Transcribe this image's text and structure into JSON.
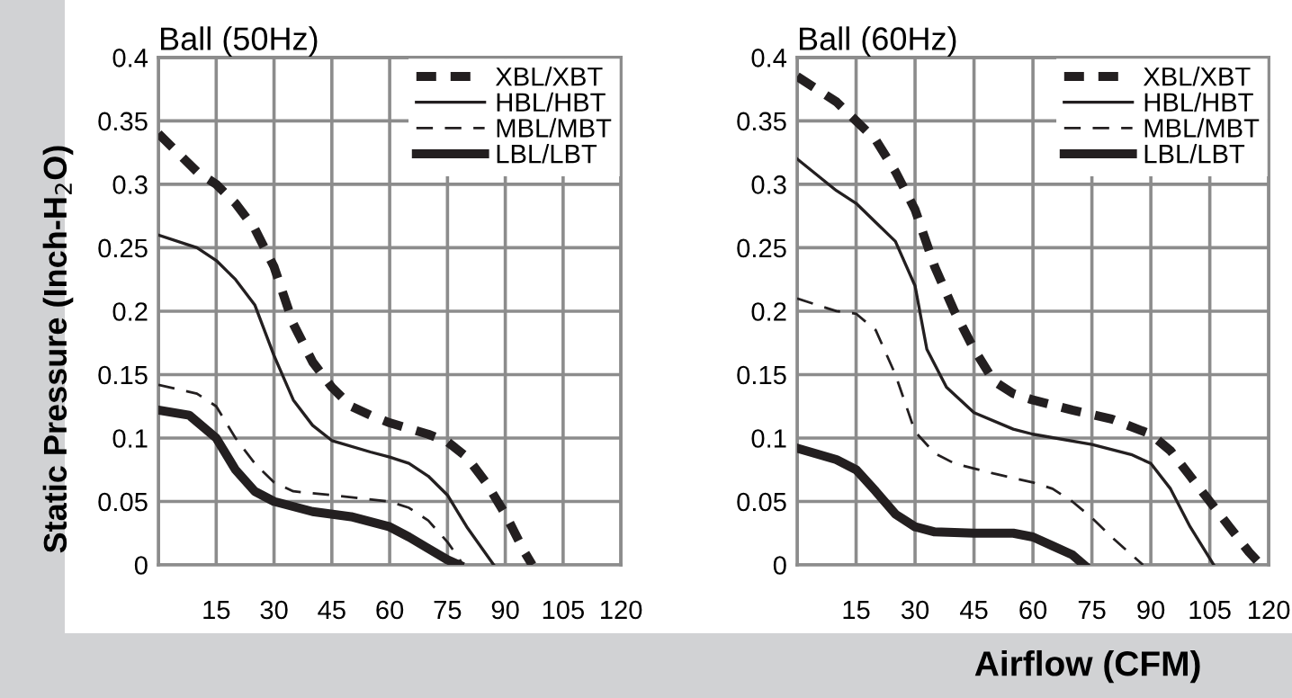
{
  "chart_data": [
    {
      "type": "line",
      "title": "Ball (50Hz)",
      "ylabel": "Static Pressure (Inch-H$_{2}$O)",
      "xlim": [
        0,
        120
      ],
      "ylim": [
        0,
        0.4
      ],
      "xticks": [
        {
          "value": 0,
          "label": null
        },
        15,
        30,
        45,
        60,
        75,
        90,
        105,
        120
      ],
      "yticks": [
        0,
        0.05,
        0.1,
        0.15,
        0.2,
        0.25,
        0.3,
        0.35,
        0.4
      ],
      "grid": true,
      "legend": "top right",
      "series": [
        {
          "name": "XBL/XBT",
          "color": "#231f20",
          "line_style": "dashed",
          "x": [
            0,
            5,
            10,
            15,
            20,
            25,
            30,
            35,
            40,
            45,
            50,
            55,
            60,
            70,
            75,
            80,
            85,
            90,
            95,
            97
          ],
          "values": [
            0.34,
            0.325,
            0.31,
            0.3,
            0.285,
            0.265,
            0.235,
            0.19,
            0.16,
            0.14,
            0.125,
            0.118,
            0.112,
            0.103,
            0.097,
            0.085,
            0.065,
            0.04,
            0.01,
            0
          ]
        },
        {
          "name": "HBL/HBT",
          "color": "#231f20",
          "line_style": "solid",
          "x": [
            0,
            10,
            15,
            20,
            25,
            30,
            35,
            40,
            45,
            55,
            60,
            65,
            70,
            75,
            80,
            87
          ],
          "values": [
            0.26,
            0.25,
            0.24,
            0.225,
            0.205,
            0.165,
            0.13,
            0.11,
            0.098,
            0.089,
            0.085,
            0.08,
            0.07,
            0.055,
            0.03,
            0
          ]
        },
        {
          "name": "MBL/MBT",
          "color": "#231f20",
          "line_style": "dashed",
          "x": [
            0,
            10,
            15,
            20,
            25,
            30,
            35,
            45,
            60,
            65,
            70,
            75,
            78,
            79
          ],
          "values": [
            0.142,
            0.135,
            0.125,
            0.1,
            0.08,
            0.065,
            0.058,
            0.055,
            0.05,
            0.045,
            0.035,
            0.018,
            0.005,
            0
          ]
        },
        {
          "name": "LBL/LBT",
          "color": "#231f20",
          "line_style": "solid",
          "x": [
            0,
            8,
            15,
            20,
            25,
            30,
            40,
            50,
            60,
            65,
            70,
            75,
            78
          ],
          "values": [
            0.122,
            0.118,
            0.1,
            0.075,
            0.058,
            0.05,
            0.042,
            0.038,
            0.03,
            0.022,
            0.013,
            0.004,
            0
          ]
        }
      ]
    },
    {
      "type": "line",
      "title": "Ball (60Hz)",
      "xlabel": "Airflow (CFM)",
      "xlim": [
        0,
        120
      ],
      "ylim": [
        0,
        0.4
      ],
      "xticks": [
        {
          "value": 0,
          "label": null
        },
        15,
        30,
        45,
        60,
        75,
        90,
        105,
        120
      ],
      "yticks": [
        0,
        0.05,
        0.1,
        0.15,
        0.2,
        0.25,
        0.3,
        0.35,
        0.4
      ],
      "grid": true,
      "legend": "top right",
      "series": [
        {
          "name": "XBL/XBT",
          "color": "#231f20",
          "line_style": "dashed",
          "x": [
            0,
            5,
            10,
            15,
            20,
            25,
            30,
            35,
            40,
            45,
            50,
            55,
            60,
            70,
            80,
            90,
            95,
            100,
            105,
            110,
            115,
            118
          ],
          "values": [
            0.385,
            0.375,
            0.365,
            0.35,
            0.335,
            0.31,
            0.28,
            0.235,
            0.2,
            0.17,
            0.145,
            0.135,
            0.13,
            0.122,
            0.115,
            0.103,
            0.09,
            0.07,
            0.05,
            0.03,
            0.01,
            0
          ]
        },
        {
          "name": "HBL/HBT",
          "color": "#231f20",
          "line_style": "solid",
          "x": [
            0,
            10,
            15,
            20,
            25,
            30,
            33,
            38,
            45,
            55,
            60,
            75,
            85,
            90,
            95,
            100,
            105,
            106
          ],
          "values": [
            0.32,
            0.295,
            0.285,
            0.27,
            0.255,
            0.22,
            0.17,
            0.14,
            0.12,
            0.107,
            0.103,
            0.095,
            0.087,
            0.08,
            0.06,
            0.03,
            0.005,
            0
          ]
        },
        {
          "name": "MBL/MBT",
          "color": "#231f20",
          "line_style": "dashed",
          "x": [
            0,
            10,
            15,
            20,
            25,
            30,
            35,
            40,
            50,
            60,
            65,
            70,
            75,
            80,
            88
          ],
          "values": [
            0.21,
            0.2,
            0.198,
            0.185,
            0.15,
            0.105,
            0.088,
            0.08,
            0.072,
            0.065,
            0.06,
            0.05,
            0.037,
            0.022,
            0
          ]
        },
        {
          "name": "LBL/LBT",
          "color": "#231f20",
          "line_style": "solid",
          "x": [
            0,
            10,
            15,
            20,
            25,
            30,
            35,
            45,
            55,
            60,
            65,
            70,
            73
          ],
          "values": [
            0.092,
            0.083,
            0.075,
            0.058,
            0.04,
            0.03,
            0.026,
            0.025,
            0.025,
            0.022,
            0.015,
            0.008,
            0
          ]
        }
      ]
    }
  ]
}
